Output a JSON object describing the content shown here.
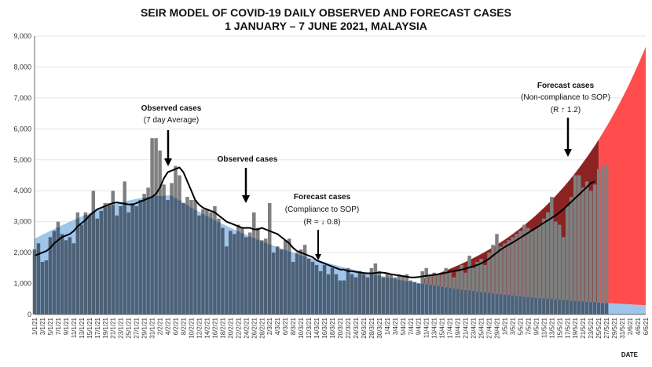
{
  "chart_data": {
    "type": "bar",
    "title_line1": "SEIR MODEL OF COVID-19 DAILY OBSERVED AND FORECAST CASES",
    "title_line2": "1 JANUARY  – 7 JUNE 2021, MALAYSIA",
    "xlabel": "DATE",
    "ylabel": "",
    "ylim": [
      0,
      9000
    ],
    "yticks": [
      "0",
      "1,000",
      "2,000",
      "3,000",
      "4,000",
      "5,000",
      "6,000",
      "7,000",
      "8,000",
      "9,000"
    ],
    "date_labels": [
      "1/1/21",
      "3/1/21",
      "5/1/21",
      "7/1/21",
      "9/1/21",
      "11/1/21",
      "13/1/21",
      "15/1/21",
      "17/1/21",
      "19/1/21",
      "21/1/21",
      "23/1/21",
      "25/1/21",
      "27/1/21",
      "29/1/21",
      "31/1/21",
      "2/2/21",
      "4/2/21",
      "6/2/21",
      "8/2/21",
      "10/2/21",
      "12/2/21",
      "14/2/21",
      "16/2/21",
      "18/2/21",
      "20/2/21",
      "22/2/21",
      "24/2/21",
      "26/2/21",
      "28/2/21",
      "2/3/21",
      "4/3/21",
      "6/3/21",
      "8/3/21",
      "10/3/21",
      "12/3/21",
      "14/3/21",
      "16/3/21",
      "18/3/21",
      "20/3/21",
      "22/3/21",
      "24/3/21",
      "26/3/21",
      "28/3/21",
      "30/3/21",
      "1/4/21",
      "3/4/21",
      "5/4/21",
      "7/4/21",
      "9/4/21",
      "11/4/21",
      "13/4/21",
      "15/4/21",
      "17/4/21",
      "19/4/21",
      "21/4/21",
      "23/4/21",
      "25/4/21",
      "27/4/21",
      "29/4/21",
      "1/5/21",
      "3/5/21",
      "5/5/21",
      "7/5/21",
      "9/5/21",
      "11/5/21",
      "13/5/21",
      "15/5/21",
      "17/5/21",
      "19/5/21",
      "21/5/21",
      "23/5/21",
      "25/5/21",
      "27/5/21",
      "29/5/21",
      "31/5/21",
      "2/6/21",
      "4/6/21",
      "6/6/21"
    ],
    "series": [
      {
        "name": "Observed cases",
        "type": "bar",
        "values": [
          2100,
          2300,
          1700,
          1750,
          2500,
          2700,
          3000,
          2600,
          2400,
          2500,
          2300,
          3300,
          2900,
          3300,
          3200,
          4000,
          3100,
          3350,
          3600,
          3600,
          4000,
          3200,
          3500,
          4300,
          3300,
          3600,
          3500,
          3700,
          3900,
          4100,
          5700,
          5700,
          5300,
          4200,
          3700,
          4250,
          4800,
          4500,
          3600,
          3800,
          3700,
          3700,
          3200,
          3400,
          3400,
          3300,
          3500,
          3100,
          2800,
          2200,
          2700,
          2600,
          2900,
          2800,
          2500,
          2650,
          3300,
          2800,
          2400,
          2450,
          3600,
          2000,
          2200,
          2100,
          2400,
          2450,
          1700,
          2000,
          2100,
          2250,
          1800,
          1700,
          1600,
          1400,
          1600,
          1300,
          1500,
          1300,
          1100,
          1100,
          1500,
          1300,
          1200,
          1400,
          1300,
          1200,
          1500,
          1650,
          1400,
          1200,
          1350,
          1300,
          1200,
          1300,
          1250,
          1300,
          1100,
          1050,
          1000,
          1400,
          1500,
          1300,
          1350,
          1300,
          1300,
          1500,
          1400,
          1200,
          1400,
          1600,
          1350,
          1900,
          1500,
          1700,
          1800,
          1600,
          2000,
          2250,
          2600,
          2200,
          2300,
          2400,
          2500,
          2600,
          2700,
          2900,
          2800,
          2700,
          2800,
          2900,
          3100,
          3300,
          3800,
          3000,
          2900,
          2500,
          3500,
          3800,
          4500,
          4500,
          4100,
          4300,
          4000,
          4200,
          4700,
          4800,
          4850
        ]
      },
      {
        "name": "Observed cases (7 day Average)",
        "type": "line",
        "values": [
          1900,
          1950,
          2000,
          2050,
          2150,
          2300,
          2400,
          2500,
          2550,
          2600,
          2700,
          2850,
          2950,
          3050,
          3200,
          3300,
          3400,
          3450,
          3500,
          3550,
          3600,
          3620,
          3600,
          3580,
          3560,
          3550,
          3600,
          3650,
          3700,
          3750,
          3800,
          3900,
          4100,
          4400,
          4600,
          4650,
          4700,
          4750,
          4600,
          4300,
          4000,
          3700,
          3550,
          3450,
          3400,
          3350,
          3300,
          3200,
          3100,
          3000,
          2950,
          2900,
          2850,
          2800,
          2800,
          2800,
          2750,
          2750,
          2800,
          2750,
          2700,
          2650,
          2600,
          2500,
          2400,
          2300,
          2150,
          2050,
          2000,
          1950,
          1900,
          1850,
          1750,
          1700,
          1650,
          1600,
          1550,
          1500,
          1450,
          1450,
          1400,
          1400,
          1380,
          1360,
          1340,
          1330,
          1330,
          1340,
          1360,
          1350,
          1330,
          1300,
          1280,
          1260,
          1240,
          1220,
          1200,
          1200,
          1210,
          1230,
          1250,
          1260,
          1280,
          1300,
          1320,
          1350,
          1380,
          1400,
          1420,
          1450,
          1480,
          1520,
          1560,
          1600,
          1650,
          1720,
          1800,
          1900,
          2000,
          2100,
          2180,
          2250,
          2320,
          2400,
          2480,
          2560,
          2640,
          2720,
          2800,
          2880,
          2960,
          3040,
          3120,
          3200,
          3300,
          3400,
          3520,
          3640,
          3760,
          3880,
          4000,
          4120,
          4250,
          4300
        ]
      }
    ],
    "model_compliance": {
      "name": "Forecast cases (Compliance to SOP)",
      "start": 2450,
      "peak": 3850,
      "end": 300
    },
    "model_noncompliance": {
      "name": "Forecast cases (Non-compliance to SOP)",
      "start": 1150,
      "end": 8650
    },
    "annotations": {
      "obs1_title": "Observed cases",
      "obs1_sub": "(7 day Average)",
      "obs2_title": "Observed cases",
      "fc1_title": "Forecast cases",
      "fc1_sub": "(Compliance to SOP)",
      "fc1_r": "(R = ↓ 0.8)",
      "fc2_title": "Forecast cases",
      "fc2_sub": "(Non-compliance to SOP)",
      "fc2_r": "(R ↑ 1.2)"
    },
    "colors": {
      "light_blue": "#9fc5ea",
      "slate": "#4d6075",
      "bar": "#7f7f7f",
      "red": "#ff4d4d",
      "dark_red": "#8b2323",
      "line": "#000000"
    }
  }
}
